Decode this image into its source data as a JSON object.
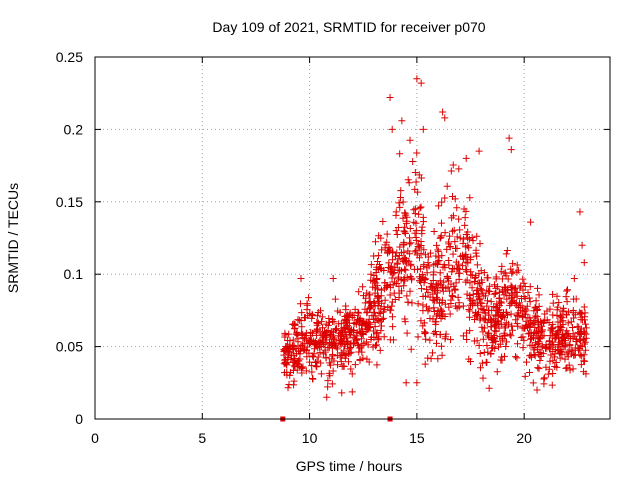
{
  "chart_data": {
    "type": "scatter",
    "title": "Day 109 of 2021, SRMTID for receiver p070",
    "xlabel": "GPS time / hours",
    "ylabel": "SRMTID / TECUs",
    "xlim": [
      0,
      24
    ],
    "ylim": [
      0,
      0.25
    ],
    "xticks": [
      0,
      5,
      10,
      15,
      20
    ],
    "yticks": [
      0,
      0.05,
      0.1,
      0.15,
      0.2,
      0.25
    ],
    "xtick_labels": [
      "0",
      "5",
      "10",
      "15",
      "20"
    ],
    "ytick_labels": [
      "0",
      "0.05",
      "0.1",
      "0.15",
      "0.2",
      "0.25"
    ],
    "grid": true,
    "marker": "+",
    "series_color": "#dd0000",
    "zero_markers_x": [
      8.75,
      13.75
    ],
    "profile": [
      {
        "x": 8.8,
        "y": 0.04
      },
      {
        "x": 9.5,
        "y": 0.055
      },
      {
        "x": 10.5,
        "y": 0.052
      },
      {
        "x": 11.5,
        "y": 0.055
      },
      {
        "x": 12.5,
        "y": 0.06
      },
      {
        "x": 13.2,
        "y": 0.085
      },
      {
        "x": 13.8,
        "y": 0.105
      },
      {
        "x": 14.5,
        "y": 0.12
      },
      {
        "x": 15.0,
        "y": 0.13
      },
      {
        "x": 15.5,
        "y": 0.08
      },
      {
        "x": 16.0,
        "y": 0.09
      },
      {
        "x": 16.5,
        "y": 0.11
      },
      {
        "x": 17.0,
        "y": 0.11
      },
      {
        "x": 17.5,
        "y": 0.1
      },
      {
        "x": 18.0,
        "y": 0.075
      },
      {
        "x": 18.5,
        "y": 0.065
      },
      {
        "x": 19.3,
        "y": 0.08
      },
      {
        "x": 20.0,
        "y": 0.065
      },
      {
        "x": 20.5,
        "y": 0.06
      },
      {
        "x": 21.5,
        "y": 0.055
      },
      {
        "x": 22.5,
        "y": 0.06
      },
      {
        "x": 22.9,
        "y": 0.055
      }
    ],
    "highlights": [
      {
        "x": 13.75,
        "y": 0.222
      },
      {
        "x": 13.85,
        "y": 0.2
      },
      {
        "x": 14.3,
        "y": 0.206
      },
      {
        "x": 15.0,
        "y": 0.235
      },
      {
        "x": 15.2,
        "y": 0.232
      },
      {
        "x": 15.3,
        "y": 0.2
      },
      {
        "x": 16.2,
        "y": 0.212
      },
      {
        "x": 16.3,
        "y": 0.208
      },
      {
        "x": 17.3,
        "y": 0.18
      },
      {
        "x": 17.9,
        "y": 0.185
      },
      {
        "x": 19.3,
        "y": 0.194
      },
      {
        "x": 19.4,
        "y": 0.186
      },
      {
        "x": 20.3,
        "y": 0.136
      },
      {
        "x": 22.6,
        "y": 0.143
      },
      {
        "x": 22.7,
        "y": 0.12
      },
      {
        "x": 22.8,
        "y": 0.108
      },
      {
        "x": 9.6,
        "y": 0.097
      },
      {
        "x": 11.1,
        "y": 0.097
      },
      {
        "x": 15.0,
        "y": 0.025
      },
      {
        "x": 14.5,
        "y": 0.025
      },
      {
        "x": 20.6,
        "y": 0.02
      },
      {
        "x": 10.8,
        "y": 0.015
      },
      {
        "x": 11.5,
        "y": 0.018
      }
    ]
  }
}
